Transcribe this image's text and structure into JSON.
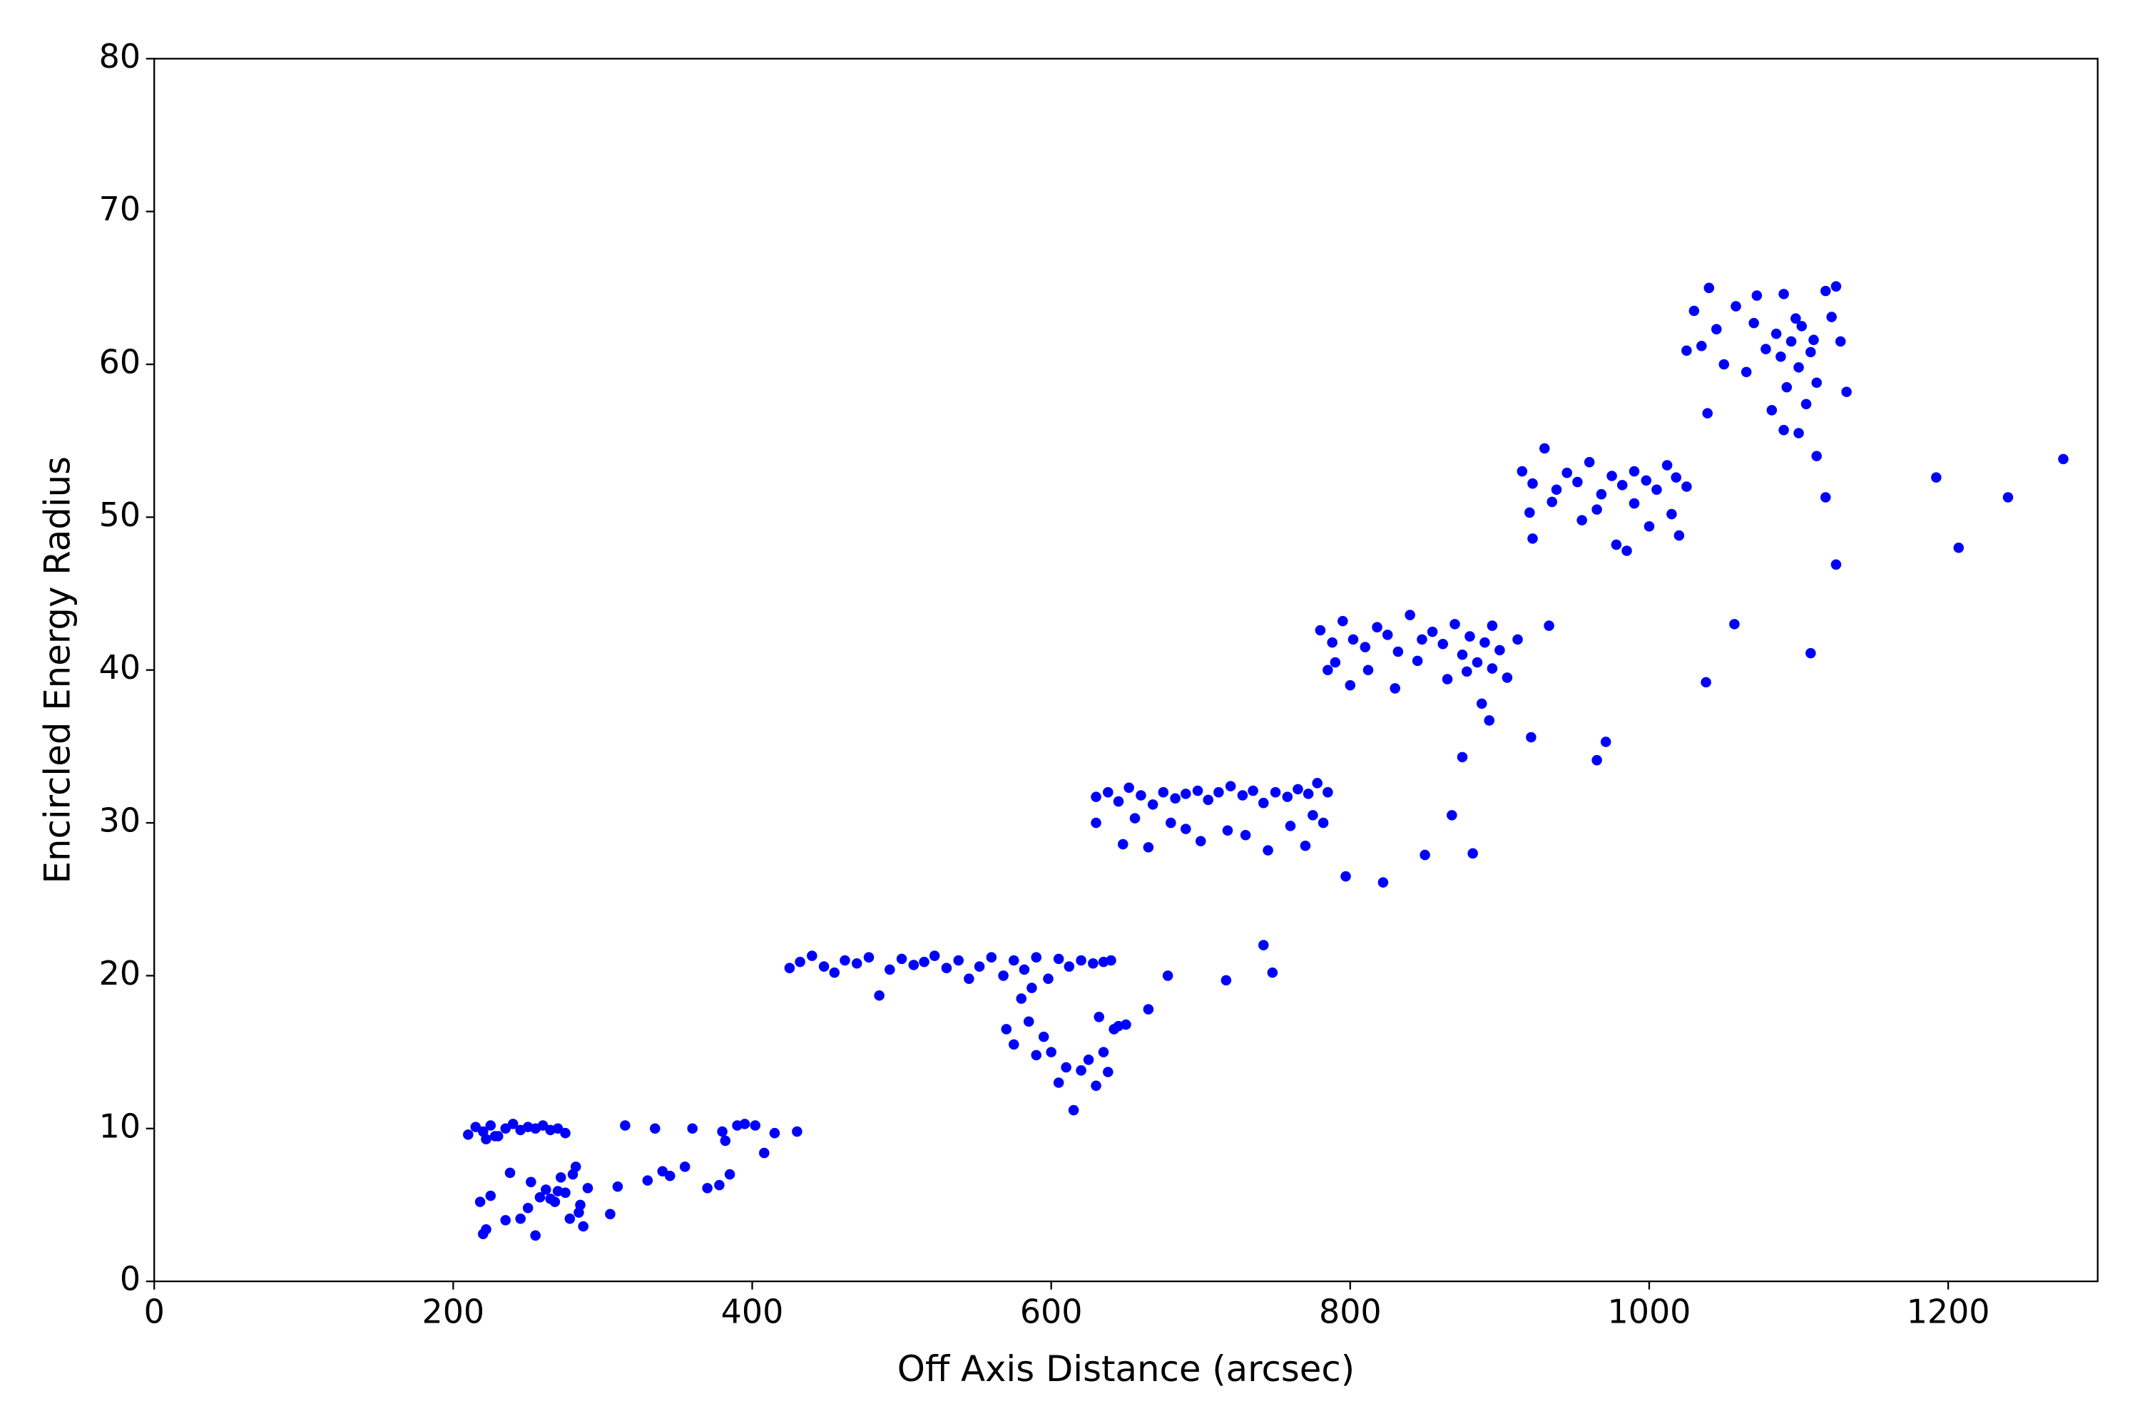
{
  "chart_data": {
    "type": "scatter",
    "xlabel": "Off Axis Distance (arcsec)",
    "ylabel": "Encircled Energy Radius",
    "xlim": [
      0,
      1300
    ],
    "ylim": [
      0,
      80
    ],
    "xticks": [
      0,
      200,
      400,
      600,
      800,
      1000,
      1200
    ],
    "yticks": [
      0,
      10,
      20,
      30,
      40,
      50,
      60,
      70,
      80
    ],
    "color": "#0000ff",
    "x": [
      210,
      215,
      220,
      225,
      230,
      235,
      240,
      245,
      250,
      255,
      260,
      265,
      270,
      275,
      222,
      228,
      218,
      235,
      245,
      225,
      220,
      222,
      255,
      258,
      262,
      268,
      272,
      278,
      282,
      285,
      287,
      290,
      250,
      265,
      275,
      280,
      238,
      284,
      252,
      270,
      305,
      315,
      310,
      330,
      340,
      345,
      355,
      360,
      370,
      378,
      380,
      382,
      385,
      390,
      395,
      402,
      408,
      415,
      430,
      335,
      425,
      432,
      440,
      448,
      455,
      462,
      470,
      478,
      485,
      492,
      500,
      508,
      515,
      522,
      530,
      538,
      545,
      552,
      560,
      568,
      575,
      582,
      590,
      598,
      605,
      612,
      620,
      628,
      635,
      640,
      570,
      575,
      580,
      585,
      590,
      595,
      600,
      605,
      610,
      615,
      620,
      625,
      630,
      632,
      635,
      638,
      642,
      645,
      650,
      587,
      630,
      638,
      645,
      652,
      660,
      668,
      675,
      683,
      690,
      698,
      705,
      712,
      720,
      728,
      735,
      742,
      750,
      758,
      765,
      772,
      778,
      785,
      630,
      648,
      656,
      665,
      680,
      700,
      718,
      745,
      760,
      775,
      782,
      690,
      730,
      770,
      780,
      788,
      795,
      802,
      810,
      818,
      825,
      832,
      840,
      848,
      855,
      862,
      870,
      875,
      880,
      885,
      890,
      895,
      900,
      905,
      912,
      790,
      800,
      812,
      830,
      845,
      865,
      878,
      895,
      785,
      915,
      922,
      930,
      938,
      945,
      952,
      960,
      968,
      975,
      982,
      990,
      998,
      1005,
      1012,
      1018,
      1025,
      920,
      935,
      955,
      965,
      978,
      985,
      1000,
      1015,
      1020,
      922,
      990,
      1030,
      1035,
      1040,
      1045,
      1050,
      1058,
      1065,
      1072,
      1078,
      1082,
      1085,
      1088,
      1090,
      1092,
      1095,
      1098,
      1100,
      1102,
      1105,
      1108,
      1110,
      1112,
      1118,
      1122,
      1125,
      1128,
      1132,
      1090,
      1100,
      1070,
      665,
      678,
      717,
      742,
      748,
      797,
      822,
      850,
      868,
      875,
      882,
      888,
      893,
      921,
      933,
      965,
      971,
      1038,
      1057,
      1108,
      1118,
      1125,
      1192,
      1207,
      1240,
      1277,
      1112,
      1039,
      1025
    ],
    "values": [
      9.6,
      10.1,
      9.8,
      10.2,
      9.5,
      10.0,
      10.3,
      9.9,
      10.1,
      10.0,
      10.2,
      9.9,
      10.0,
      9.7,
      9.3,
      9.5,
      5.2,
      4.0,
      4.1,
      5.6,
      3.1,
      3.4,
      3.0,
      5.5,
      6.0,
      5.2,
      6.8,
      4.1,
      7.5,
      5.0,
      3.6,
      6.1,
      4.8,
      5.4,
      5.8,
      7.0,
      7.1,
      4.5,
      6.5,
      5.9,
      4.4,
      10.2,
      6.2,
      6.6,
      7.2,
      6.9,
      7.5,
      10.0,
      6.1,
      6.3,
      9.8,
      9.2,
      7.0,
      10.2,
      10.3,
      10.2,
      8.4,
      9.7,
      9.8,
      10.0,
      20.5,
      20.9,
      21.3,
      20.6,
      20.2,
      21.0,
      20.8,
      21.2,
      18.7,
      20.4,
      21.1,
      20.7,
      20.9,
      21.3,
      20.5,
      21.0,
      19.8,
      20.6,
      21.2,
      20.0,
      21.0,
      20.4,
      21.2,
      19.8,
      21.1,
      20.6,
      21.0,
      20.8,
      20.9,
      21.0,
      16.5,
      15.5,
      18.5,
      17.0,
      14.8,
      16.0,
      15.0,
      13.0,
      14.0,
      11.2,
      13.8,
      14.5,
      12.8,
      17.3,
      15.0,
      13.7,
      16.5,
      16.7,
      16.8,
      19.2,
      31.7,
      32.0,
      31.4,
      32.3,
      31.8,
      31.2,
      32.0,
      31.6,
      31.9,
      32.1,
      31.5,
      32.0,
      32.4,
      31.8,
      32.1,
      31.3,
      32.0,
      31.7,
      32.2,
      31.9,
      32.6,
      32.0,
      30.0,
      28.6,
      30.3,
      28.4,
      30.0,
      28.8,
      29.5,
      28.2,
      29.8,
      30.5,
      30.0,
      29.6,
      29.2,
      28.5,
      42.6,
      41.8,
      43.2,
      42.0,
      41.5,
      42.8,
      42.3,
      41.2,
      43.6,
      42.0,
      42.5,
      41.7,
      43.0,
      41.0,
      42.2,
      40.5,
      41.8,
      42.9,
      41.3,
      39.5,
      42.0,
      40.5,
      39.0,
      40.0,
      38.8,
      40.6,
      39.4,
      39.9,
      40.1,
      40.0,
      53.0,
      52.2,
      54.5,
      51.8,
      52.9,
      52.3,
      53.6,
      51.5,
      52.7,
      52.1,
      53.0,
      52.4,
      51.8,
      53.4,
      52.6,
      52.0,
      50.3,
      51.0,
      49.8,
      50.5,
      48.2,
      47.8,
      49.4,
      50.2,
      48.8,
      48.6,
      50.9,
      63.5,
      61.2,
      65.0,
      62.3,
      60.0,
      63.8,
      59.5,
      64.5,
      61.0,
      57.0,
      62.0,
      60.5,
      64.6,
      58.5,
      61.5,
      63.0,
      59.8,
      62.5,
      57.4,
      60.8,
      61.6,
      58.8,
      64.8,
      63.1,
      65.1,
      61.5,
      58.2,
      55.7,
      55.5,
      62.7,
      17.8,
      20.0,
      19.7,
      22.0,
      20.2,
      26.5,
      26.1,
      27.9,
      30.5,
      34.3,
      28.0,
      37.8,
      36.7,
      35.6,
      42.9,
      34.1,
      35.3,
      39.2,
      43.0,
      41.1,
      51.3,
      46.9,
      52.6,
      48.0,
      51.3,
      53.8,
      54.0,
      56.8,
      60.9
    ]
  }
}
